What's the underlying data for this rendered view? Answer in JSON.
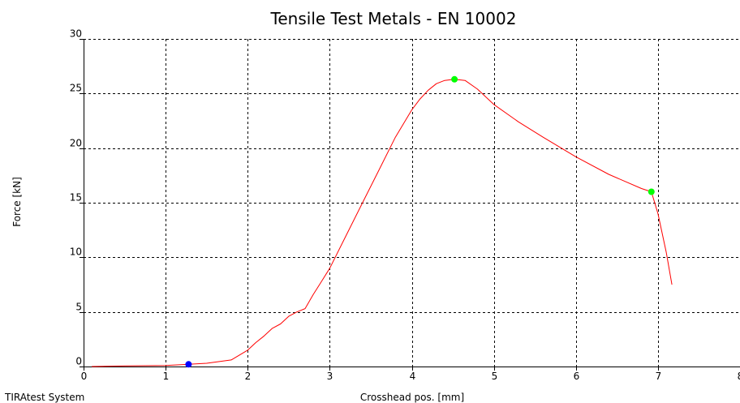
{
  "chart_data": {
    "type": "line",
    "title": "Tensile Test Metals - EN 10002",
    "xlabel": "Crosshead pos. [mm]",
    "ylabel": "Force [kN]",
    "xlim": [
      0,
      8
    ],
    "ylim": [
      0,
      30
    ],
    "x_ticks": [
      "0",
      "1",
      "2",
      "3",
      "4",
      "5",
      "6",
      "7",
      "8"
    ],
    "y_ticks": [
      "0",
      "5",
      "10",
      "15",
      "20",
      "25",
      "30"
    ],
    "grid": true,
    "line_color": "#ff0000",
    "series": [
      {
        "x": [
          0.1,
          0.5,
          1.0,
          1.28,
          1.5,
          1.8,
          2.0,
          2.1,
          2.2,
          2.3,
          2.4,
          2.5,
          2.6,
          2.7,
          2.8,
          2.9,
          3.0,
          3.2,
          3.4,
          3.6,
          3.8,
          4.0,
          4.1,
          4.2,
          4.3,
          4.4,
          4.52,
          4.65,
          4.8,
          5.0,
          5.3,
          5.6,
          6.0,
          6.4,
          6.8,
          6.92,
          7.0,
          7.1,
          7.17
        ],
        "y": [
          0.0,
          0.05,
          0.1,
          0.2,
          0.3,
          0.6,
          1.5,
          2.2,
          2.8,
          3.5,
          3.9,
          4.6,
          5.0,
          5.3,
          6.6,
          7.8,
          9.0,
          12.0,
          15.0,
          18.0,
          21.0,
          23.5,
          24.5,
          25.3,
          25.9,
          26.2,
          26.3,
          26.2,
          25.4,
          24.0,
          22.4,
          21.0,
          19.2,
          17.6,
          16.3,
          16.0,
          14.0,
          10.5,
          7.5
        ]
      }
    ],
    "markers": [
      {
        "x": 1.28,
        "y": 0.2,
        "color": "#0000ff"
      },
      {
        "x": 4.52,
        "y": 26.3,
        "color": "#00ff00"
      },
      {
        "x": 6.92,
        "y": 16.0,
        "color": "#00ff00"
      }
    ]
  },
  "footer": {
    "system_label": "TIRAtest System"
  }
}
